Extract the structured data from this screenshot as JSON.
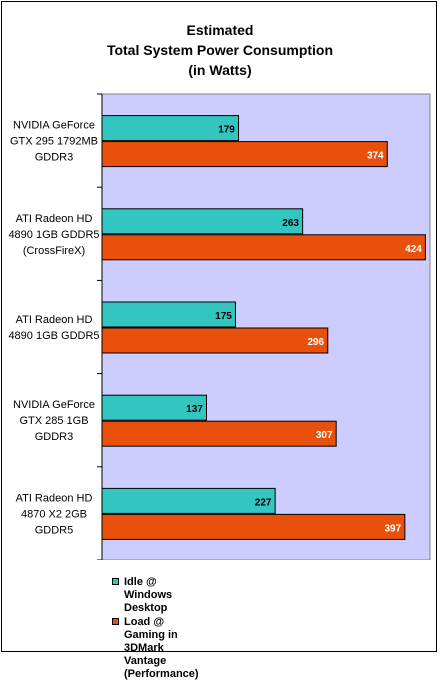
{
  "chart_data": {
    "type": "bar",
    "orientation": "horizontal",
    "title_lines": [
      "Estimated",
      "Total System Power Consumption",
      "(in Watts)"
    ],
    "categories": [
      [
        "NVIDIA GeForce",
        "GTX 295 1792MB",
        "GDDR3"
      ],
      [
        "ATI Radeon HD",
        "4890 1GB GDDR5",
        "(CrossFireX)"
      ],
      [
        "ATI Radeon HD",
        "4890 1GB GDDR5"
      ],
      [
        "NVIDIA GeForce",
        "GTX 285 1GB",
        "GDDR3"
      ],
      [
        "ATI Radeon HD",
        "4870 X2 2GB",
        "GDDR5"
      ]
    ],
    "series": [
      {
        "name": "Idle @ Windows Desktop",
        "values": [
          179,
          263,
          175,
          137,
          227
        ],
        "color": "#33c5c0",
        "label_color": "#000000"
      },
      {
        "name": "Load @ Gaming in 3DMark Vantage\n(Performance)",
        "values": [
          374,
          424,
          296,
          307,
          397
        ],
        "color": "#e8500c",
        "label_color": "#ffffff"
      }
    ],
    "xlim": [
      0,
      430
    ],
    "grid": false,
    "legend_position": "bottom",
    "plot_background": "#ccccff"
  }
}
